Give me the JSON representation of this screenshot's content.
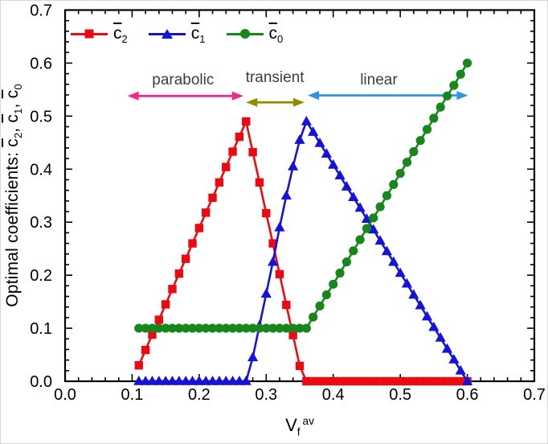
{
  "chart_data": {
    "type": "line",
    "title": "",
    "xlabel": {
      "base": "V",
      "sub": "f",
      "sup": "av"
    },
    "ylabel": {
      "prefix": "Optimal coefficients: ",
      "c": "c",
      "sub2": "2",
      "sub1": "1",
      "sub0": "0",
      "sep": ", "
    },
    "xlim": [
      0,
      0.7
    ],
    "ylim": [
      0,
      0.7
    ],
    "x_tick_labels": [
      "0.0",
      "0.1",
      "0.2",
      "0.3",
      "0.4",
      "0.5",
      "0.6",
      "0.7"
    ],
    "y_tick_labels": [
      "0.0",
      "0.1",
      "0.2",
      "0.3",
      "0.4",
      "0.5",
      "0.6",
      "0.7"
    ],
    "minor_tick_step": 0.02,
    "grid": false,
    "legend_position": "top-left-inside",
    "frame_color": "#000000",
    "text_color": "#000000",
    "series": [
      {
        "name": "c2_bar",
        "label_base": "c",
        "label_sub": "2",
        "color": "#ea0b12",
        "marker": "square",
        "points": [
          [
            0.11,
            0.03
          ],
          [
            0.12,
            0.059
          ],
          [
            0.13,
            0.088
          ],
          [
            0.14,
            0.116
          ],
          [
            0.15,
            0.145
          ],
          [
            0.16,
            0.174
          ],
          [
            0.17,
            0.203
          ],
          [
            0.18,
            0.231
          ],
          [
            0.19,
            0.26
          ],
          [
            0.2,
            0.289
          ],
          [
            0.21,
            0.318
          ],
          [
            0.22,
            0.346
          ],
          [
            0.23,
            0.375
          ],
          [
            0.24,
            0.404
          ],
          [
            0.25,
            0.433
          ],
          [
            0.26,
            0.461
          ],
          [
            0.27,
            0.49
          ],
          [
            0.28,
            0.432
          ],
          [
            0.29,
            0.375
          ],
          [
            0.3,
            0.317
          ],
          [
            0.31,
            0.26
          ],
          [
            0.32,
            0.202
          ],
          [
            0.33,
            0.144
          ],
          [
            0.34,
            0.087
          ],
          [
            0.35,
            0.029
          ],
          [
            0.36,
            0.0
          ],
          [
            0.37,
            0.0
          ],
          [
            0.38,
            0.0
          ],
          [
            0.39,
            0.0
          ],
          [
            0.4,
            0.0
          ],
          [
            0.41,
            0.0
          ],
          [
            0.42,
            0.0
          ],
          [
            0.43,
            0.0
          ],
          [
            0.44,
            0.0
          ],
          [
            0.45,
            0.0
          ],
          [
            0.46,
            0.0
          ],
          [
            0.47,
            0.0
          ],
          [
            0.48,
            0.0
          ],
          [
            0.49,
            0.0
          ],
          [
            0.5,
            0.0
          ],
          [
            0.51,
            0.0
          ],
          [
            0.52,
            0.0
          ],
          [
            0.53,
            0.0
          ],
          [
            0.54,
            0.0
          ],
          [
            0.55,
            0.0
          ],
          [
            0.56,
            0.0
          ],
          [
            0.57,
            0.0
          ],
          [
            0.58,
            0.0
          ],
          [
            0.59,
            0.0
          ],
          [
            0.6,
            0.0
          ]
        ]
      },
      {
        "name": "c1_bar",
        "label_base": "c",
        "label_sub": "1",
        "color": "#1513d8",
        "marker": "triangle",
        "points": [
          [
            0.11,
            0.0
          ],
          [
            0.12,
            0.0
          ],
          [
            0.13,
            0.0
          ],
          [
            0.14,
            0.0
          ],
          [
            0.15,
            0.0
          ],
          [
            0.16,
            0.0
          ],
          [
            0.17,
            0.0
          ],
          [
            0.18,
            0.0
          ],
          [
            0.19,
            0.0
          ],
          [
            0.2,
            0.0
          ],
          [
            0.21,
            0.0
          ],
          [
            0.22,
            0.0
          ],
          [
            0.23,
            0.0
          ],
          [
            0.24,
            0.0
          ],
          [
            0.25,
            0.0
          ],
          [
            0.26,
            0.0
          ],
          [
            0.27,
            0.0
          ],
          [
            0.28,
            0.045
          ],
          [
            0.29,
            0.105
          ],
          [
            0.3,
            0.165
          ],
          [
            0.31,
            0.225
          ],
          [
            0.32,
            0.29
          ],
          [
            0.33,
            0.35
          ],
          [
            0.34,
            0.405
          ],
          [
            0.35,
            0.455
          ],
          [
            0.36,
            0.49
          ],
          [
            0.37,
            0.47
          ],
          [
            0.38,
            0.449
          ],
          [
            0.39,
            0.429
          ],
          [
            0.4,
            0.408
          ],
          [
            0.41,
            0.388
          ],
          [
            0.42,
            0.367
          ],
          [
            0.43,
            0.347
          ],
          [
            0.44,
            0.327
          ],
          [
            0.45,
            0.306
          ],
          [
            0.46,
            0.286
          ],
          [
            0.47,
            0.265
          ],
          [
            0.48,
            0.245
          ],
          [
            0.49,
            0.225
          ],
          [
            0.5,
            0.204
          ],
          [
            0.51,
            0.184
          ],
          [
            0.52,
            0.163
          ],
          [
            0.53,
            0.143
          ],
          [
            0.54,
            0.122
          ],
          [
            0.55,
            0.102
          ],
          [
            0.56,
            0.082
          ],
          [
            0.57,
            0.061
          ],
          [
            0.58,
            0.041
          ],
          [
            0.59,
            0.02
          ],
          [
            0.6,
            0.0
          ]
        ]
      },
      {
        "name": "c0_bar",
        "label_base": "c",
        "label_sub": "0",
        "color": "#17871b",
        "marker": "circle",
        "points": [
          [
            0.11,
            0.1
          ],
          [
            0.12,
            0.1
          ],
          [
            0.13,
            0.1
          ],
          [
            0.14,
            0.1
          ],
          [
            0.15,
            0.1
          ],
          [
            0.16,
            0.1
          ],
          [
            0.17,
            0.1
          ],
          [
            0.18,
            0.1
          ],
          [
            0.19,
            0.1
          ],
          [
            0.2,
            0.1
          ],
          [
            0.21,
            0.1
          ],
          [
            0.22,
            0.1
          ],
          [
            0.23,
            0.1
          ],
          [
            0.24,
            0.1
          ],
          [
            0.25,
            0.1
          ],
          [
            0.26,
            0.1
          ],
          [
            0.27,
            0.1
          ],
          [
            0.28,
            0.1
          ],
          [
            0.29,
            0.1
          ],
          [
            0.3,
            0.1
          ],
          [
            0.31,
            0.1
          ],
          [
            0.32,
            0.1
          ],
          [
            0.33,
            0.1
          ],
          [
            0.34,
            0.1
          ],
          [
            0.35,
            0.1
          ],
          [
            0.36,
            0.1
          ],
          [
            0.37,
            0.121
          ],
          [
            0.38,
            0.142
          ],
          [
            0.39,
            0.163
          ],
          [
            0.4,
            0.183
          ],
          [
            0.41,
            0.204
          ],
          [
            0.42,
            0.225
          ],
          [
            0.43,
            0.246
          ],
          [
            0.44,
            0.267
          ],
          [
            0.45,
            0.288
          ],
          [
            0.46,
            0.308
          ],
          [
            0.47,
            0.329
          ],
          [
            0.48,
            0.35
          ],
          [
            0.49,
            0.371
          ],
          [
            0.5,
            0.392
          ],
          [
            0.51,
            0.413
          ],
          [
            0.52,
            0.433
          ],
          [
            0.53,
            0.454
          ],
          [
            0.54,
            0.475
          ],
          [
            0.55,
            0.496
          ],
          [
            0.56,
            0.517
          ],
          [
            0.57,
            0.538
          ],
          [
            0.58,
            0.558
          ],
          [
            0.59,
            0.579
          ],
          [
            0.6,
            0.6
          ]
        ]
      }
    ],
    "annotations": [
      {
        "label": "parabolic",
        "label_color": "#3d3d3d",
        "arrow_color": "#ee2a8c",
        "arrow": {
          "x1": 0.093,
          "x2": 0.266,
          "y": 0.538
        },
        "label_pos": {
          "x": 0.176,
          "y": 0.567
        }
      },
      {
        "label": "transient",
        "label_color": "#3d3d3d",
        "arrow_color": "#8f8c00",
        "arrow": {
          "x1": 0.27,
          "x2": 0.357,
          "y": 0.526
        },
        "label_pos": {
          "x": 0.313,
          "y": 0.572
        }
      },
      {
        "label": "linear",
        "label_color": "#3d3d3d",
        "arrow_color": "#2e94e8",
        "arrow": {
          "x1": 0.362,
          "x2": 0.601,
          "y": 0.539
        },
        "label_pos": {
          "x": 0.468,
          "y": 0.567
        }
      }
    ]
  }
}
